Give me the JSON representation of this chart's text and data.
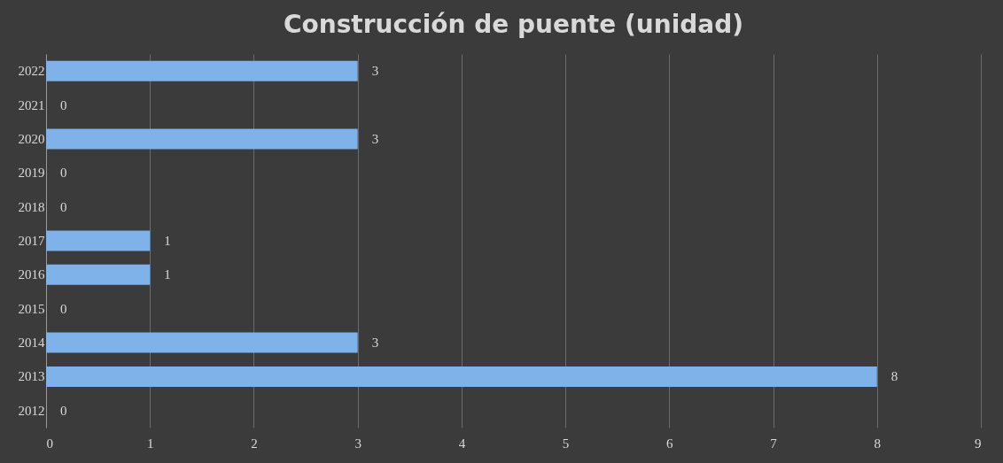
{
  "chart_data": {
    "type": "bar",
    "title": "Construcción de puente (unidad)",
    "orientation": "horizontal",
    "categories": [
      "2022",
      "2021",
      "2020",
      "2019",
      "2018",
      "2017",
      "2016",
      "2015",
      "2014",
      "2013",
      "2012"
    ],
    "values": [
      3,
      0,
      3,
      0,
      0,
      1,
      1,
      0,
      3,
      8,
      0
    ],
    "color": "#7fb2e8",
    "xlim": [
      0,
      9
    ],
    "xticks": [
      0,
      1,
      2,
      3,
      4,
      5,
      6,
      7,
      8,
      9
    ],
    "grid": "x",
    "data_labels": true
  }
}
